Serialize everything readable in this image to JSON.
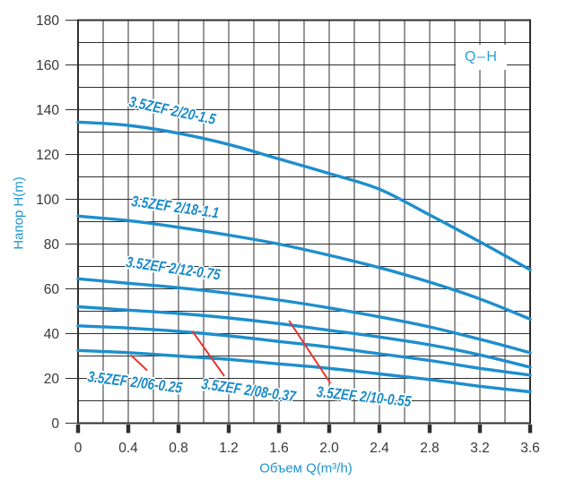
{
  "chart_data": {
    "type": "line",
    "legend": "Q–H",
    "legend_position": "top-right",
    "xlabel": "Объем Q(m³/h)",
    "ylabel": "Напор H(m)",
    "xlim": [
      0,
      3.6
    ],
    "ylim": [
      0,
      180
    ],
    "grid": true,
    "x_grid_step": 0.2,
    "y_grid_step": 10,
    "xticks": [
      "0",
      "0.4",
      "0.8",
      "1.2",
      "1.6",
      "2.0",
      "2.4",
      "2.8",
      "3.2",
      "3.6"
    ],
    "xtick_values": [
      0,
      0.4,
      0.8,
      1.2,
      1.6,
      2.0,
      2.4,
      2.8,
      3.2,
      3.6
    ],
    "yticks": [
      "0",
      "20",
      "40",
      "60",
      "80",
      "100",
      "120",
      "140",
      "160",
      "180"
    ],
    "ytick_values": [
      0,
      20,
      40,
      60,
      80,
      100,
      120,
      140,
      160,
      180
    ],
    "x": [
      0,
      0.4,
      0.8,
      1.2,
      1.6,
      2.0,
      2.4,
      2.8,
      3.2,
      3.6
    ],
    "series": [
      {
        "name": "3.5ZEF 2/20-1.5",
        "values": [
          134.5,
          133,
          129.5,
          124.5,
          118,
          111.5,
          104.5,
          93,
          81,
          68.5
        ],
        "label_pos": {
          "left": 146,
          "top": 104,
          "rotate": 12
        }
      },
      {
        "name": "3.5ZEF 2/18-1.1",
        "values": [
          92.5,
          90.5,
          87.5,
          84,
          80,
          75,
          69.5,
          63,
          55.5,
          46.5
        ],
        "label_pos": {
          "left": 148,
          "top": 215,
          "rotate": 8
        }
      },
      {
        "name": "3.5ZEF 2/12-0.75",
        "values": [
          64.5,
          62.5,
          60.5,
          58,
          55,
          51.5,
          47.5,
          43,
          37.5,
          31.5
        ],
        "label_pos": {
          "left": 142,
          "top": 283,
          "rotate": 8
        }
      },
      {
        "name": "3.5ZEF 2/10-0.55",
        "values": [
          52,
          50.5,
          49,
          47,
          44.5,
          41.5,
          38.5,
          35,
          30.5,
          25
        ],
        "label_pos": {
          "left": 354,
          "top": 428,
          "rotate": 6
        }
      },
      {
        "name": "3.5ZEF 2/08-0.37",
        "values": [
          43.5,
          42.5,
          41,
          39,
          36.5,
          34,
          31,
          28,
          24.5,
          21.5
        ],
        "label_pos": {
          "left": 226,
          "top": 419,
          "rotate": 8
        }
      },
      {
        "name": "3.5ZEF 2/06-0.25",
        "values": [
          32.5,
          31.5,
          30,
          28.5,
          26.5,
          24.5,
          22,
          19.5,
          16.5,
          14
        ],
        "label_pos": {
          "left": 99,
          "top": 411,
          "rotate": 7
        }
      }
    ],
    "pointers": [
      {
        "x1": 0.42,
        "y1": 30.4,
        "x2": 0.55,
        "y2": 23.6
      },
      {
        "x1": 0.91,
        "y1": 41.1,
        "x2": 1.165,
        "y2": 21.0
      },
      {
        "x1": 1.68,
        "y1": 45.8,
        "x2": 2.01,
        "y2": 17.8
      }
    ],
    "colors": {
      "curve": "#1e8ecd",
      "label_text": "#1a8bc9",
      "pointer": "#e6352f",
      "grid": "#2f2f2f",
      "tick_text": "#36383a",
      "axis_title": "#1f93d0",
      "legend_text": "#2b9fd8"
    }
  }
}
